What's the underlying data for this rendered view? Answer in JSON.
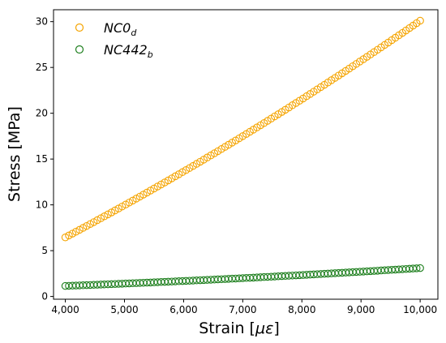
{
  "chart_data": {
    "type": "scatter",
    "xlabel_main": "Strain [",
    "xlabel_sym": "με",
    "xlabel_end": "]",
    "ylabel": "Stress [MPa]",
    "xlim": [
      3800,
      10300
    ],
    "ylim": [
      -0.3,
      31.3
    ],
    "xticks": [
      4000,
      5000,
      6000,
      7000,
      8000,
      9000,
      10000
    ],
    "xtick_labels": [
      "4,000",
      "5,000",
      "6,000",
      "7,000",
      "8,000",
      "9,000",
      "10,000"
    ],
    "yticks": [
      0,
      5,
      10,
      15,
      20,
      25,
      30
    ],
    "ytick_labels": [
      "0",
      "5",
      "10",
      "15",
      "20",
      "25",
      "30"
    ],
    "legend_position": "top-left",
    "marker": "open-circle",
    "series": [
      {
        "name_main": "NC0",
        "name_sub": "d",
        "color": "#F5A400",
        "x_range": [
          4000,
          10000
        ],
        "num_points": 101,
        "y_formula_note": "quadratic fit through points",
        "y_anchor": [
          [
            4000,
            6.45
          ],
          [
            7000,
            17.5
          ],
          [
            10000,
            30.1
          ]
        ]
      },
      {
        "name_main": "NC442",
        "name_sub": "b",
        "color": "#1E7F1E",
        "x_range": [
          4000,
          10000
        ],
        "num_points": 101,
        "y_formula_note": "quadratic fit through points",
        "y_anchor": [
          [
            4000,
            1.15
          ],
          [
            7000,
            2.0
          ],
          [
            10000,
            3.1
          ]
        ]
      }
    ]
  }
}
